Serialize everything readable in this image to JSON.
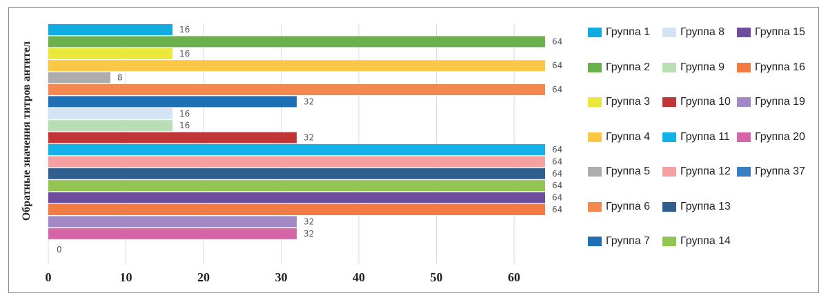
{
  "chart_data": {
    "type": "bar",
    "orientation": "horizontal",
    "ylabel": "Обратные значения титров антител",
    "xlabel": "",
    "xlim": [
      0,
      64
    ],
    "x_ticks": [
      0,
      10,
      20,
      30,
      40,
      50,
      60
    ],
    "grid": "vertical",
    "legend_position": "right",
    "series": [
      {
        "name": "Группа 1",
        "value": 16,
        "color": "#10ACE2"
      },
      {
        "name": "Группа 2",
        "value": 64,
        "color": "#6AB04C"
      },
      {
        "name": "Группа 3",
        "value": 16,
        "color": "#EAE83A"
      },
      {
        "name": "Группа 4",
        "value": 64,
        "color": "#FBC845"
      },
      {
        "name": "Группа 5",
        "value": 8,
        "color": "#ADADAD"
      },
      {
        "name": "Группа 6",
        "value": 64,
        "color": "#F58850"
      },
      {
        "name": "Группа 7",
        "value": 32,
        "color": "#1F6FB4"
      },
      {
        "name": "Группа 8",
        "value": 16,
        "color": "#D4E4F4"
      },
      {
        "name": "Группа 9",
        "value": 16,
        "color": "#B8DEB4"
      },
      {
        "name": "Группа 10",
        "value": 32,
        "color": "#C13438"
      },
      {
        "name": "Группа 11",
        "value": 64,
        "color": "#13B1E8"
      },
      {
        "name": "Группа 12",
        "value": 64,
        "color": "#F5A1A1"
      },
      {
        "name": "Группа 13",
        "value": 64,
        "color": "#2E5F8E"
      },
      {
        "name": "Группа 14",
        "value": 64,
        "color": "#93C555"
      },
      {
        "name": "Группа 15",
        "value": 64,
        "color": "#6E4C9E"
      },
      {
        "name": "Группа 16",
        "value": 64,
        "color": "#F07B43"
      },
      {
        "name": "Группа 19",
        "value": 32,
        "color": "#A288C4"
      },
      {
        "name": "Группа 20",
        "value": 32,
        "color": "#D565A6"
      },
      {
        "name": "Группа 37",
        "value": 0,
        "color": "#3A7FC4"
      }
    ],
    "legend_order": [
      "Группа 1",
      "Группа 8",
      "Группа 15",
      "Группа 2",
      "Группа 9",
      "Группа 16",
      "Группа 3",
      "Группа 10",
      "Группа 19",
      "Группа 4",
      "Группа 11",
      "Группа 20",
      "Группа 5",
      "Группа 12",
      "Группа 37",
      "Группа 6",
      "Группа 13",
      null,
      "Группа 7",
      "Группа 14",
      null
    ]
  }
}
